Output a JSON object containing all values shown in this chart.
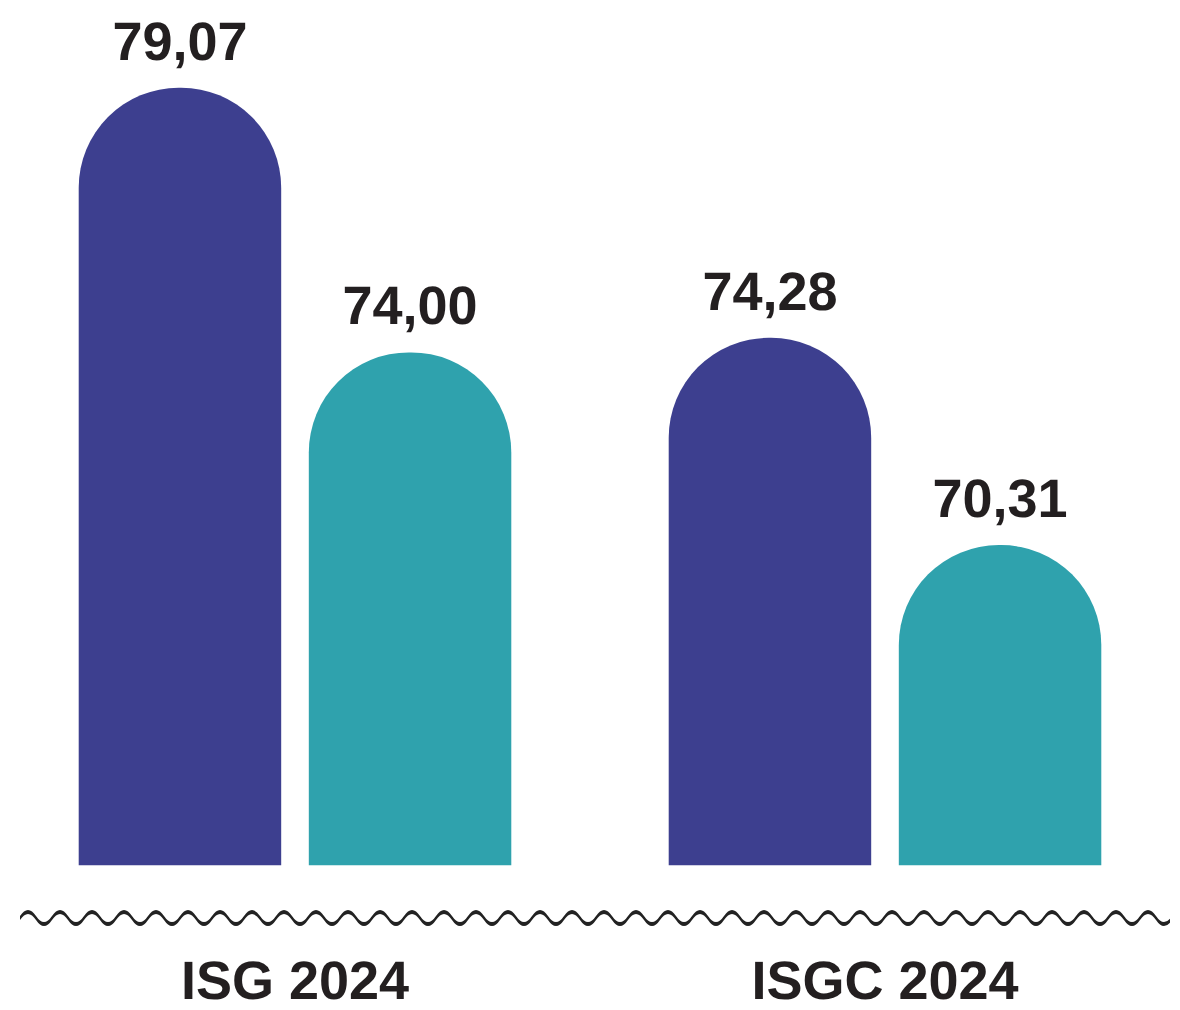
{
  "chart_data": {
    "type": "bar",
    "categories": [
      "ISG 2024",
      "ISGC 2024"
    ],
    "series": [
      {
        "color": "#3d3f8f",
        "values": [
          79.07,
          74.28
        ],
        "value_labels": [
          "79,07",
          "74,28"
        ]
      },
      {
        "color": "#2fa2ad",
        "values": [
          74.0,
          70.31
        ],
        "value_labels": [
          "74,00",
          "70,31"
        ]
      }
    ],
    "tick_labels": "x"
  }
}
